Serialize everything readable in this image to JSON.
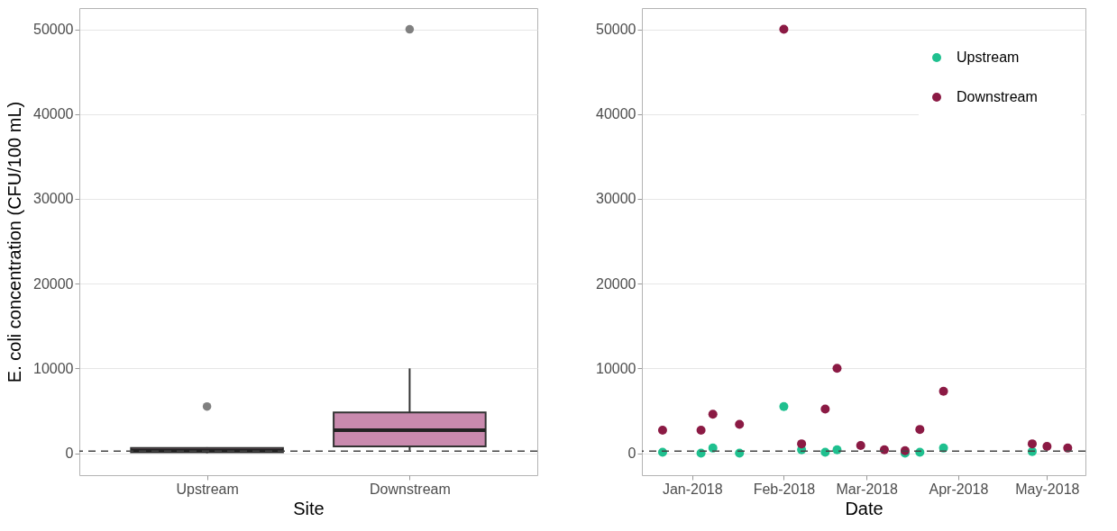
{
  "chart_data": [
    {
      "type": "box",
      "xlabel": "Site",
      "ylabel": "E. coli concentration (CFU/100 mL)",
      "categories": [
        "Upstream",
        "Downstream"
      ],
      "color": "#c98aae",
      "boxes": [
        {
          "low": 0,
          "q1": 100,
          "median": 300,
          "q3": 600,
          "high": 700,
          "outliers": [
            5500
          ]
        },
        {
          "low": 300,
          "q1": 800,
          "median": 2700,
          "q3": 4800,
          "high": 10000,
          "outliers": [
            50000
          ]
        }
      ],
      "ylim": [
        -2600,
        52500
      ],
      "yticks": [
        0,
        10000,
        20000,
        30000,
        40000,
        50000
      ],
      "grid": "y",
      "ref_lines": [
        {
          "axis": "y",
          "value": 235,
          "label": null,
          "color": "#444444",
          "line_style": "dashed"
        }
      ]
    },
    {
      "type": "scatter",
      "xlabel": "Date",
      "legend": "top right",
      "marker": "circle",
      "xlim": [
        "2017-12-15",
        "2018-05-14"
      ],
      "xticks": [
        {
          "value": "2018-01-01",
          "label": "Jan-2018"
        },
        {
          "value": "2018-02-01",
          "label": "Feb-2018"
        },
        {
          "value": "2018-03-01",
          "label": "Mar-2018"
        },
        {
          "value": "2018-04-01",
          "label": "Apr-2018"
        },
        {
          "value": "2018-05-01",
          "label": "May-2018"
        }
      ],
      "ylim": [
        -2600,
        52500
      ],
      "yticks": [
        0,
        10000,
        20000,
        30000,
        40000,
        50000
      ],
      "grid": "y",
      "ref_lines": [
        {
          "axis": "y",
          "value": 235,
          "label": null,
          "color": "#444444",
          "line_style": "dashed"
        }
      ],
      "series": [
        {
          "name": "Upstream",
          "color": "#1fc08f",
          "x": [
            "2017-12-22",
            "2018-01-04",
            "2018-01-08",
            "2018-01-17",
            "2018-02-01",
            "2018-02-07",
            "2018-02-15",
            "2018-02-19",
            "2018-03-14",
            "2018-03-19",
            "2018-03-27",
            "2018-04-26"
          ],
          "values": [
            100,
            0,
            600,
            0,
            5500,
            400,
            100,
            400,
            0,
            100,
            600,
            200
          ]
        },
        {
          "name": "Downstream",
          "color": "#8b1a44",
          "x": [
            "2017-12-22",
            "2018-01-04",
            "2018-01-08",
            "2018-01-17",
            "2018-02-01",
            "2018-02-07",
            "2018-02-15",
            "2018-02-19",
            "2018-02-27",
            "2018-03-07",
            "2018-03-14",
            "2018-03-19",
            "2018-03-27",
            "2018-04-26",
            "2018-05-01",
            "2018-05-08"
          ],
          "values": [
            2700,
            2700,
            4600,
            3400,
            50000,
            1100,
            5200,
            10000,
            900,
            400,
            300,
            2800,
            7300,
            1100,
            800,
            600
          ]
        }
      ]
    }
  ]
}
